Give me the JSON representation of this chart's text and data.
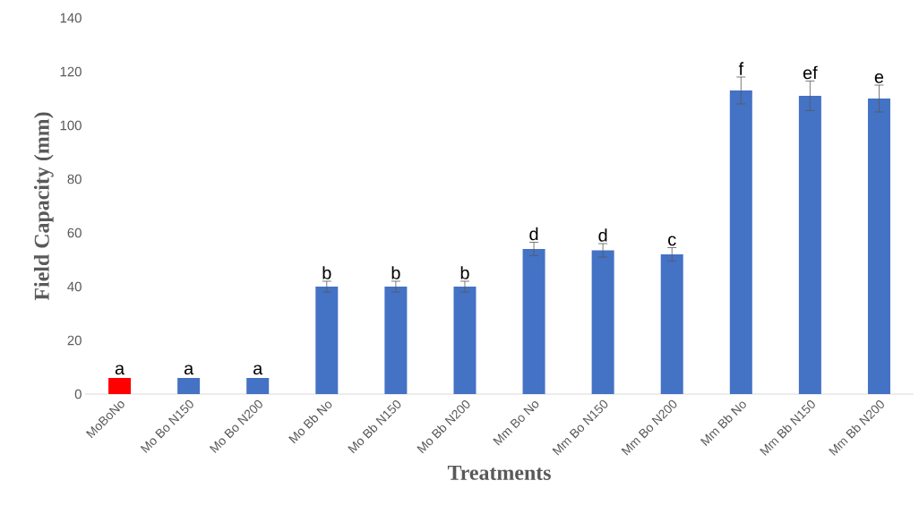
{
  "chart_data": {
    "type": "bar",
    "xlabel": "Treatments",
    "ylabel": "Field Capacity (mm)",
    "categories": [
      "MoBoNo",
      "Mo Bo N150",
      "Mo Bo N200",
      "Mo Bb No",
      "Mo Bb N150",
      "Mo Bb N200",
      "Mm Bo No",
      "Mm Bo N150",
      "Mm Bo N200",
      "Mm Bb No",
      "Mm Bb N150",
      "Mm Bb N200"
    ],
    "values": [
      6,
      6,
      6,
      40,
      40,
      40,
      54,
      53.5,
      52,
      113,
      111,
      110
    ],
    "errors": [
      null,
      null,
      null,
      2,
      2,
      2,
      2.5,
      2.5,
      2.5,
      5,
      5.5,
      5
    ],
    "colors": [
      "#ff0000",
      "#4472c4",
      "#4472c4",
      "#4472c4",
      "#4472c4",
      "#4472c4",
      "#4472c4",
      "#4472c4",
      "#4472c4",
      "#4472c4",
      "#4472c4",
      "#4472c4"
    ],
    "ylim": [
      0,
      140
    ],
    "yticks": [
      0,
      20,
      40,
      60,
      80,
      100,
      120,
      140
    ],
    "grid": false,
    "annotations": [
      {
        "text": "a",
        "x": "MoBoNo",
        "y": 6.5
      },
      {
        "text": "a",
        "x": "Mo Bo N150",
        "y": 6.5
      },
      {
        "text": "a",
        "x": "Mo Bo N200",
        "y": 6.5
      },
      {
        "text": "b",
        "x": "Mo Bb No",
        "y": 42
      },
      {
        "text": "b",
        "x": "Mo Bb N150",
        "y": 42
      },
      {
        "text": "b",
        "x": "Mo Bb N200",
        "y": 42
      },
      {
        "text": "d",
        "x": "Mm Bo No",
        "y": 56.5
      },
      {
        "text": "d",
        "x": "Mm Bo N150",
        "y": 56
      },
      {
        "text": "c",
        "x": "Mm Bo N200",
        "y": 54.5
      },
      {
        "text": "f",
        "x": "Mm Bb No",
        "y": 118
      },
      {
        "text": "ef",
        "x": "Mm Bb N150",
        "y": 116.5
      },
      {
        "text": "e",
        "x": "Mm Bb N200",
        "y": 115
      }
    ]
  }
}
